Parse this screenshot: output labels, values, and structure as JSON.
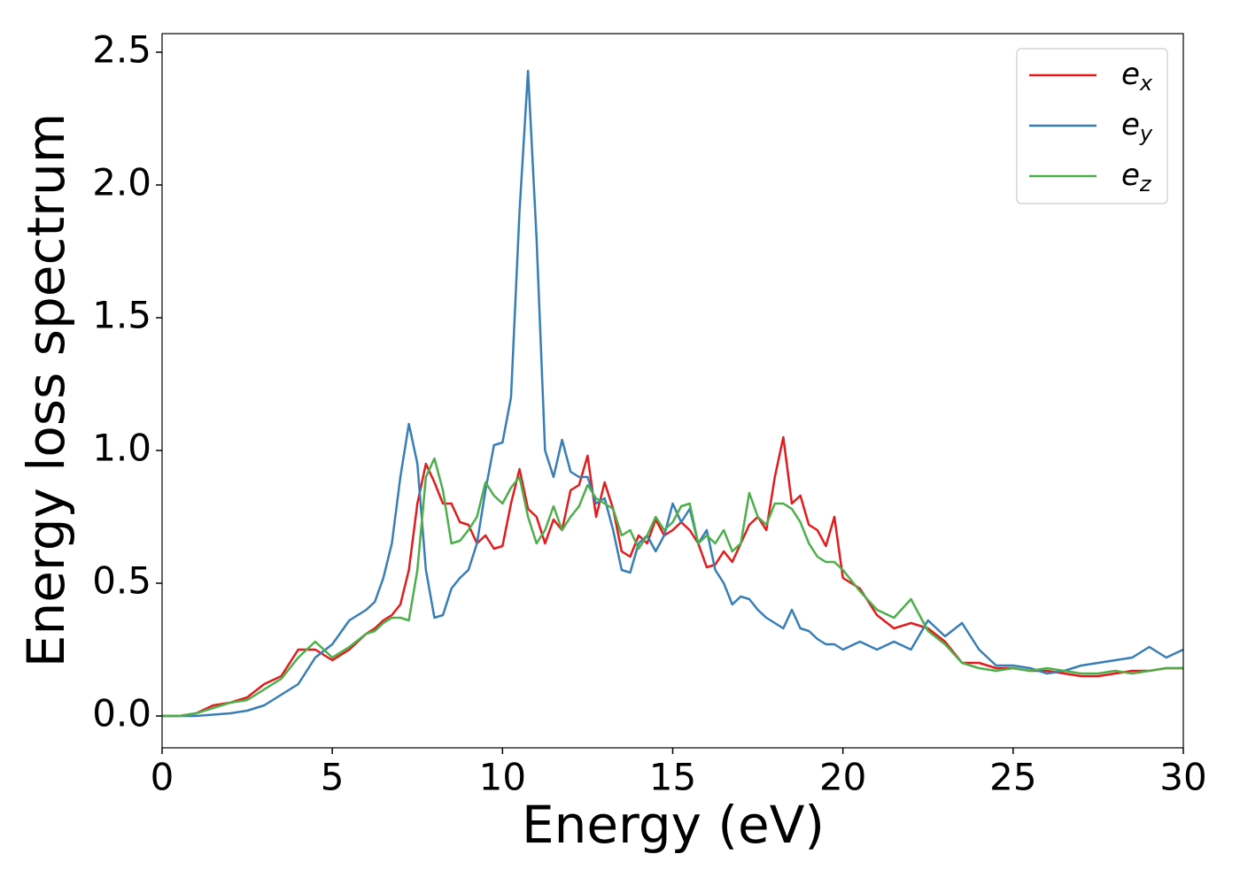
{
  "chart_data": {
    "type": "line",
    "xlabel": "Energy (eV)",
    "ylabel": "Energy loss spectrum",
    "x": [
      0,
      0.5,
      1,
      1.5,
      2,
      2.5,
      3,
      3.5,
      4,
      4.5,
      5,
      5.5,
      6,
      6.25,
      6.5,
      6.75,
      7,
      7.25,
      7.5,
      7.75,
      8,
      8.25,
      8.5,
      8.75,
      9,
      9.25,
      9.5,
      9.75,
      10,
      10.25,
      10.5,
      10.75,
      11,
      11.25,
      11.5,
      11.75,
      12,
      12.25,
      12.5,
      12.75,
      13,
      13.25,
      13.5,
      13.75,
      14,
      14.25,
      14.5,
      14.75,
      15,
      15.25,
      15.5,
      15.75,
      16,
      16.25,
      16.5,
      16.75,
      17,
      17.25,
      17.5,
      17.75,
      18,
      18.25,
      18.5,
      18.75,
      19,
      19.25,
      19.5,
      19.75,
      20,
      20.5,
      21,
      21.5,
      22,
      22.5,
      23,
      23.5,
      24,
      24.5,
      25,
      25.5,
      26,
      26.5,
      27,
      27.5,
      28,
      28.5,
      29,
      29.5,
      30
    ],
    "series": [
      {
        "name": "ex",
        "color": "#e41a1c",
        "values": [
          0,
          0,
          0.01,
          0.04,
          0.05,
          0.07,
          0.12,
          0.15,
          0.25,
          0.25,
          0.21,
          0.25,
          0.31,
          0.33,
          0.36,
          0.38,
          0.42,
          0.55,
          0.8,
          0.95,
          0.88,
          0.8,
          0.8,
          0.73,
          0.72,
          0.65,
          0.68,
          0.63,
          0.64,
          0.8,
          0.93,
          0.78,
          0.75,
          0.65,
          0.74,
          0.7,
          0.85,
          0.87,
          0.98,
          0.75,
          0.88,
          0.78,
          0.62,
          0.6,
          0.68,
          0.65,
          0.74,
          0.68,
          0.7,
          0.73,
          0.7,
          0.65,
          0.56,
          0.57,
          0.62,
          0.58,
          0.65,
          0.72,
          0.75,
          0.7,
          0.9,
          1.05,
          0.8,
          0.83,
          0.72,
          0.7,
          0.64,
          0.75,
          0.52,
          0.48,
          0.38,
          0.33,
          0.35,
          0.33,
          0.28,
          0.2,
          0.2,
          0.18,
          0.18,
          0.17,
          0.17,
          0.16,
          0.15,
          0.15,
          0.16,
          0.17,
          0.17,
          0.18,
          0.18
        ]
      },
      {
        "name": "ey",
        "color": "#377eb8",
        "values": [
          0,
          0,
          0,
          0.005,
          0.01,
          0.02,
          0.04,
          0.08,
          0.12,
          0.22,
          0.27,
          0.36,
          0.4,
          0.43,
          0.52,
          0.65,
          0.9,
          1.1,
          0.95,
          0.55,
          0.37,
          0.38,
          0.48,
          0.52,
          0.55,
          0.65,
          0.85,
          1.02,
          1.03,
          1.2,
          1.9,
          2.43,
          1.8,
          1.0,
          0.9,
          1.04,
          0.92,
          0.9,
          0.9,
          0.8,
          0.82,
          0.7,
          0.55,
          0.54,
          0.65,
          0.68,
          0.62,
          0.68,
          0.8,
          0.73,
          0.78,
          0.65,
          0.7,
          0.55,
          0.5,
          0.42,
          0.45,
          0.44,
          0.4,
          0.37,
          0.35,
          0.33,
          0.4,
          0.33,
          0.32,
          0.29,
          0.27,
          0.27,
          0.25,
          0.28,
          0.25,
          0.28,
          0.25,
          0.36,
          0.3,
          0.35,
          0.25,
          0.19,
          0.19,
          0.18,
          0.16,
          0.17,
          0.19,
          0.2,
          0.21,
          0.22,
          0.26,
          0.22,
          0.25
        ]
      },
      {
        "name": "ez",
        "color": "#4daf4a",
        "values": [
          0,
          0,
          0.01,
          0.03,
          0.05,
          0.06,
          0.1,
          0.14,
          0.22,
          0.28,
          0.22,
          0.26,
          0.31,
          0.32,
          0.35,
          0.37,
          0.37,
          0.36,
          0.55,
          0.9,
          0.97,
          0.85,
          0.65,
          0.66,
          0.7,
          0.75,
          0.88,
          0.83,
          0.8,
          0.86,
          0.9,
          0.75,
          0.65,
          0.7,
          0.79,
          0.7,
          0.75,
          0.79,
          0.87,
          0.82,
          0.8,
          0.78,
          0.68,
          0.7,
          0.63,
          0.68,
          0.75,
          0.7,
          0.73,
          0.79,
          0.8,
          0.65,
          0.68,
          0.65,
          0.7,
          0.62,
          0.65,
          0.84,
          0.75,
          0.72,
          0.8,
          0.8,
          0.78,
          0.73,
          0.65,
          0.6,
          0.58,
          0.58,
          0.55,
          0.47,
          0.4,
          0.37,
          0.44,
          0.32,
          0.27,
          0.2,
          0.18,
          0.17,
          0.18,
          0.17,
          0.18,
          0.17,
          0.16,
          0.16,
          0.17,
          0.16,
          0.17,
          0.18,
          0.18
        ]
      }
    ],
    "xlim": [
      0,
      30
    ],
    "xticks": [
      0,
      5,
      10,
      15,
      20,
      25,
      30
    ],
    "ylim": [
      -0.12,
      2.57
    ],
    "yticks": [
      {
        "value": 0,
        "label": "0.0"
      },
      0.5,
      {
        "value": 1,
        "label": "1.0"
      },
      1.5,
      {
        "value": 2,
        "label": "2.0"
      },
      2.5
    ],
    "grid": false,
    "legend": "upper right"
  }
}
